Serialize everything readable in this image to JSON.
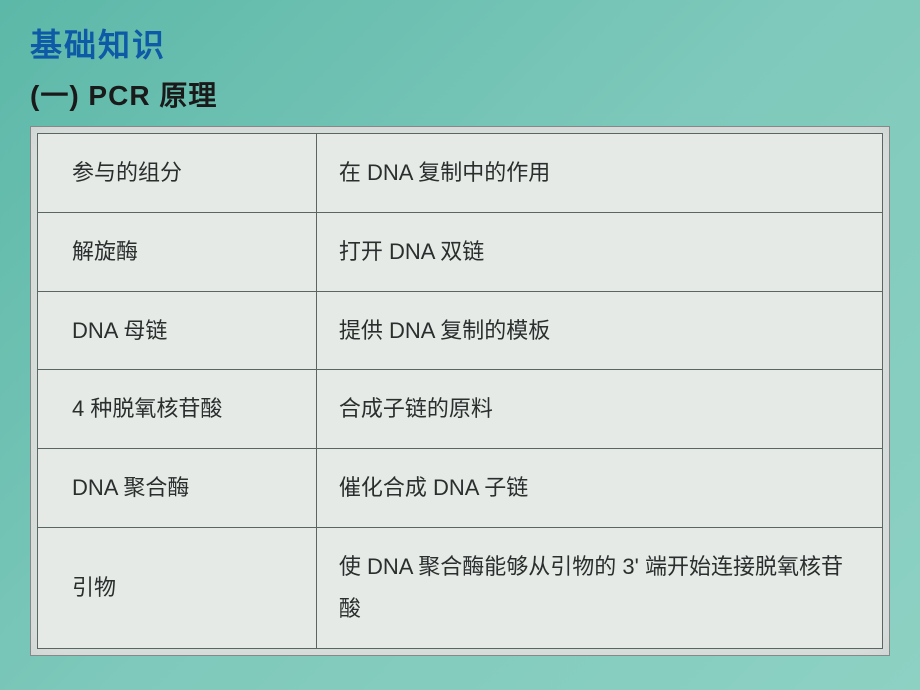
{
  "slide": {
    "heading1": "基础知识",
    "heading2": "(一) PCR 原理",
    "accent_color": "#0e5aa7",
    "text_color": "#1a1a1a"
  },
  "table": {
    "border_color": "#5a6662",
    "cell_bg": "#e5eae7",
    "wrap_bg": "#dfe4e2",
    "col_widths": [
      "33%",
      "67%"
    ],
    "font_size": 22,
    "rows": [
      {
        "left": "参与的组分",
        "right": "在 DNA 复制中的作用"
      },
      {
        "left": "解旋酶",
        "right": "打开 DNA 双链"
      },
      {
        "left": "DNA 母链",
        "right": "提供 DNA 复制的模板"
      },
      {
        "left": "4 种脱氧核苷酸",
        "right": "合成子链的原料"
      },
      {
        "left": "DNA 聚合酶",
        "right": "催化合成 DNA 子链"
      },
      {
        "left": "引物",
        "right": "使 DNA 聚合酶能够从引物的 3' 端开始连接脱氧核苷酸"
      }
    ]
  },
  "background": {
    "gradient_from": "#5cb8a8",
    "gradient_to": "#8dd1c3"
  }
}
